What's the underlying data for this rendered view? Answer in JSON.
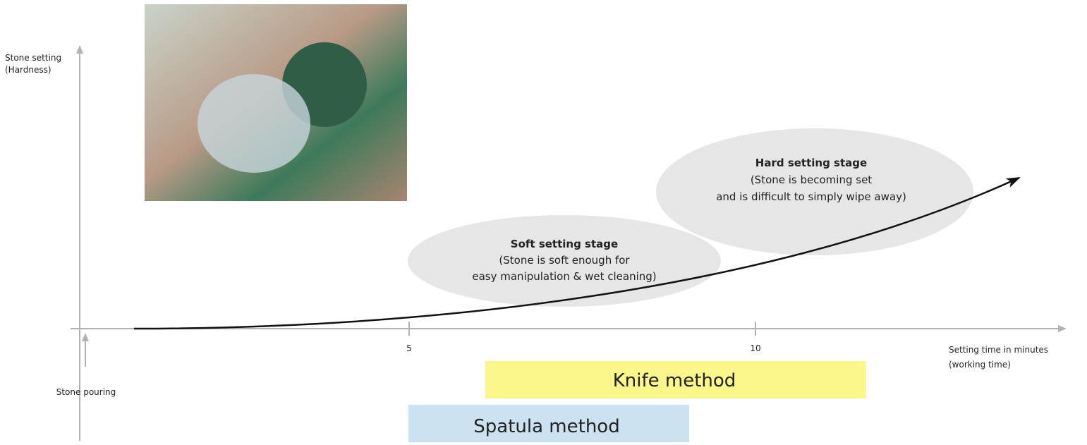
{
  "y_axis": {
    "label_lines": [
      "Stone setting",
      "(Hardness)"
    ]
  },
  "x_axis": {
    "label_lines": [
      "Setting time in minutes",
      "(working time)"
    ],
    "ticks": [
      "5",
      "10"
    ]
  },
  "origin_label": "Stone pouring",
  "stages": [
    {
      "title": "Soft setting stage",
      "lines": [
        "(Stone is soft enough for",
        "easy manipulation & wet cleaning)"
      ]
    },
    {
      "title": "Hard setting stage",
      "lines": [
        "(Stone is becoming set",
        "and is difficult to simply wipe away)"
      ]
    }
  ],
  "methods": [
    "Knife method",
    "Spatula method"
  ]
}
